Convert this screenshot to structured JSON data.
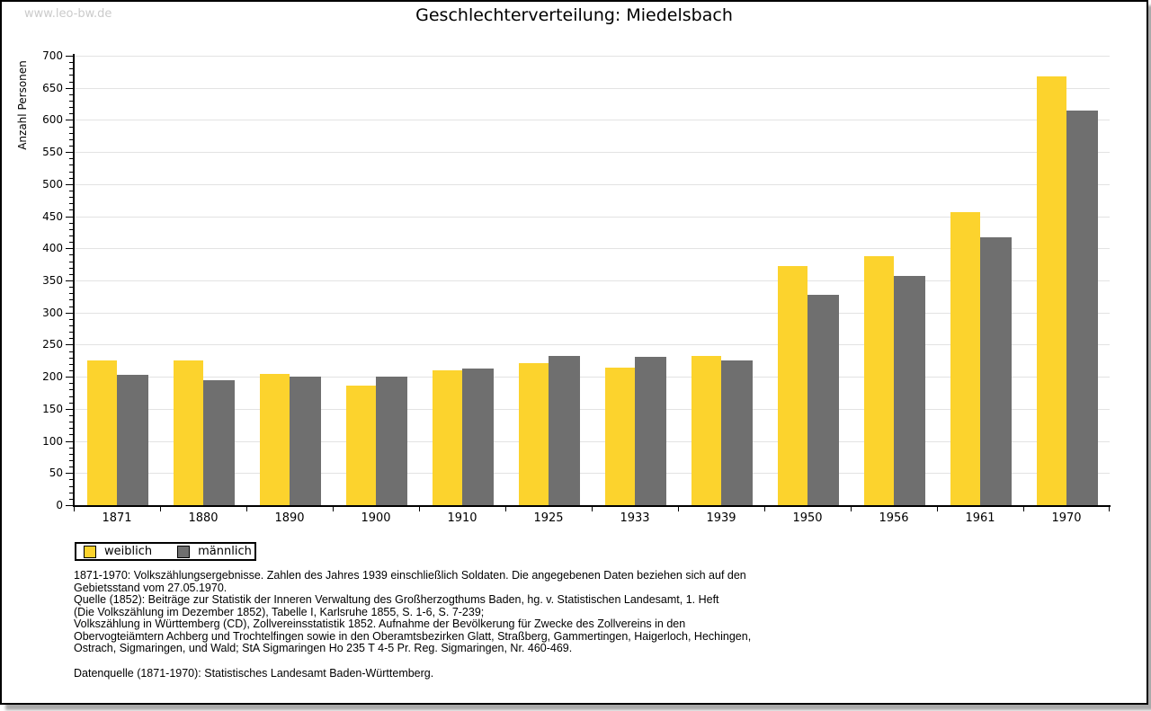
{
  "watermark": "www.leo-bw.de",
  "title": "Geschlechterverteilung: Miedelsbach",
  "chart_data": {
    "type": "bar",
    "title": "Geschlechterverteilung: Miedelsbach",
    "xlabel": "",
    "ylabel": "Anzahl Personen",
    "ylim": [
      0,
      700
    ],
    "ytick_major": 50,
    "ytick_minor": 10,
    "grid": true,
    "legend_position": "bottom-left",
    "categories": [
      "1871",
      "1880",
      "1890",
      "1900",
      "1910",
      "1925",
      "1933",
      "1939",
      "1950",
      "1956",
      "1961",
      "1970"
    ],
    "series": [
      {
        "name": "weiblich",
        "color": "#fcd32d",
        "values": [
          225,
          226,
          204,
          186,
          210,
          221,
          214,
          233,
          372,
          388,
          456,
          668
        ]
      },
      {
        "name": "männlich",
        "color": "#6f6f6f",
        "values": [
          203,
          195,
          200,
          200,
          213,
          232,
          231,
          226,
          327,
          357,
          417,
          614
        ]
      }
    ]
  },
  "footnotes": [
    "1871-1970: Volkszählungsergebnisse. Zahlen des Jahres 1939 einschließlich Soldaten. Die angegebenen Daten beziehen sich auf den",
    "Gebietsstand vom 27.05.1970.",
    "Quelle (1852): Beiträge zur Statistik der Inneren Verwaltung des Großherzogthums Baden, hg. v. Statistischen Landesamt, 1. Heft",
    "(Die Volkszählung im Dezember 1852), Tabelle I, Karlsruhe 1855, S. 1-6, S. 7-239;",
    "Volkszählung in Württemberg (CD), Zollvereinsstatistik 1852. Aufnahme der Bevölkerung für Zwecke des Zollvereins in den",
    "Obervogteiämtern Achberg und Trochtelfingen sowie in den Oberamtsbezirken Glatt, Straßberg, Gammertingen, Haigerloch, Hechingen,",
    "Ostrach, Sigmaringen, und Wald; StA Sigmaringen Ho 235 T 4-5 Pr. Reg. Sigmaringen, Nr. 460-469."
  ],
  "datasource": "Datenquelle (1871-1970): Statistisches Landesamt Baden-Württemberg.",
  "colors": {
    "bar_female": "#fcd32d",
    "bar_male": "#6f6f6f",
    "gridline": "#e3e3e3",
    "axis": "#000000",
    "watermark": "#cbcbcb",
    "frame_shadow": "#a9a9a9",
    "background": "#ffffff"
  }
}
